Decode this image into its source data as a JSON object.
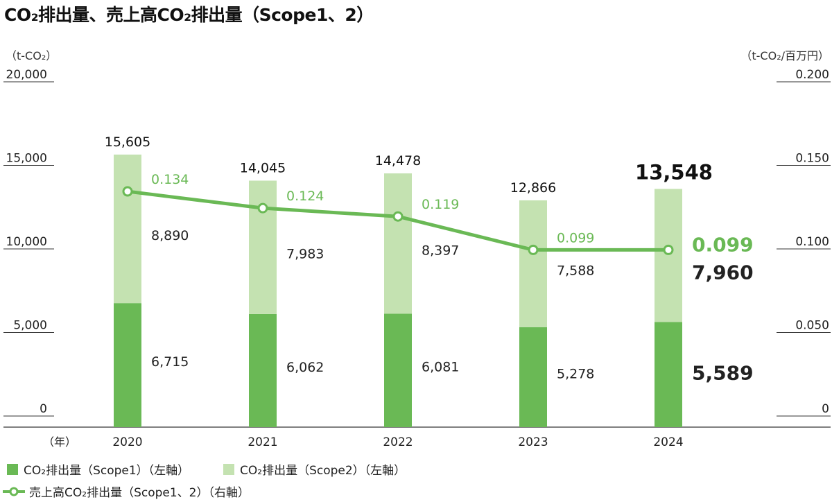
{
  "title": "CO₂排出量、売上高CO₂排出量（Scope1、2）",
  "chart_data": {
    "type": "bar",
    "subtype": "stacked bar with line on secondary axis",
    "categories": [
      "2020",
      "2021",
      "2022",
      "2023",
      "2024"
    ],
    "xlabel": "（年）",
    "ylabel": "（t-CO₂）",
    "y2label": "（t-CO₂/百万円）",
    "ylim": [
      0,
      20000
    ],
    "y2lim": [
      0,
      0.2
    ],
    "yticks": [
      "0",
      "5,000",
      "10,000",
      "15,000",
      "20,000"
    ],
    "y2ticks": [
      "0",
      "0.050",
      "0.100",
      "0.150",
      "0.200"
    ],
    "series": [
      {
        "name": "CO₂排出量（Scope1）（左軸）",
        "axis": "left",
        "kind": "bar",
        "values": [
          6715,
          6062,
          6081,
          5278,
          5589
        ],
        "labels": [
          "6,715",
          "6,062",
          "6,081",
          "5,278",
          "5,589"
        ]
      },
      {
        "name": "CO₂排出量（Scope2）（左軸）",
        "axis": "left",
        "kind": "bar",
        "values": [
          8890,
          7983,
          8397,
          7588,
          7960
        ],
        "labels": [
          "8,890",
          "7,983",
          "8,397",
          "7,588",
          "7,960"
        ]
      },
      {
        "name": "売上高CO₂排出量（Scope1、2）（右軸）",
        "axis": "right",
        "kind": "line",
        "values": [
          0.134,
          0.124,
          0.119,
          0.099,
          0.099
        ],
        "labels": [
          "0.134",
          "0.124",
          "0.119",
          "0.099",
          "0.099"
        ]
      }
    ],
    "totals": [
      15605,
      14045,
      14478,
      12866,
      13548
    ],
    "total_labels": [
      "15,605",
      "14,045",
      "14,478",
      "12,866",
      "13,548"
    ],
    "highlight_category": "2024",
    "grid": false,
    "legend_position": "bottom-left",
    "colors": {
      "scope1": "#6ab955",
      "scope2": "#c4e2b1",
      "line": "#6ab955",
      "line_label": "#6ab955"
    }
  }
}
